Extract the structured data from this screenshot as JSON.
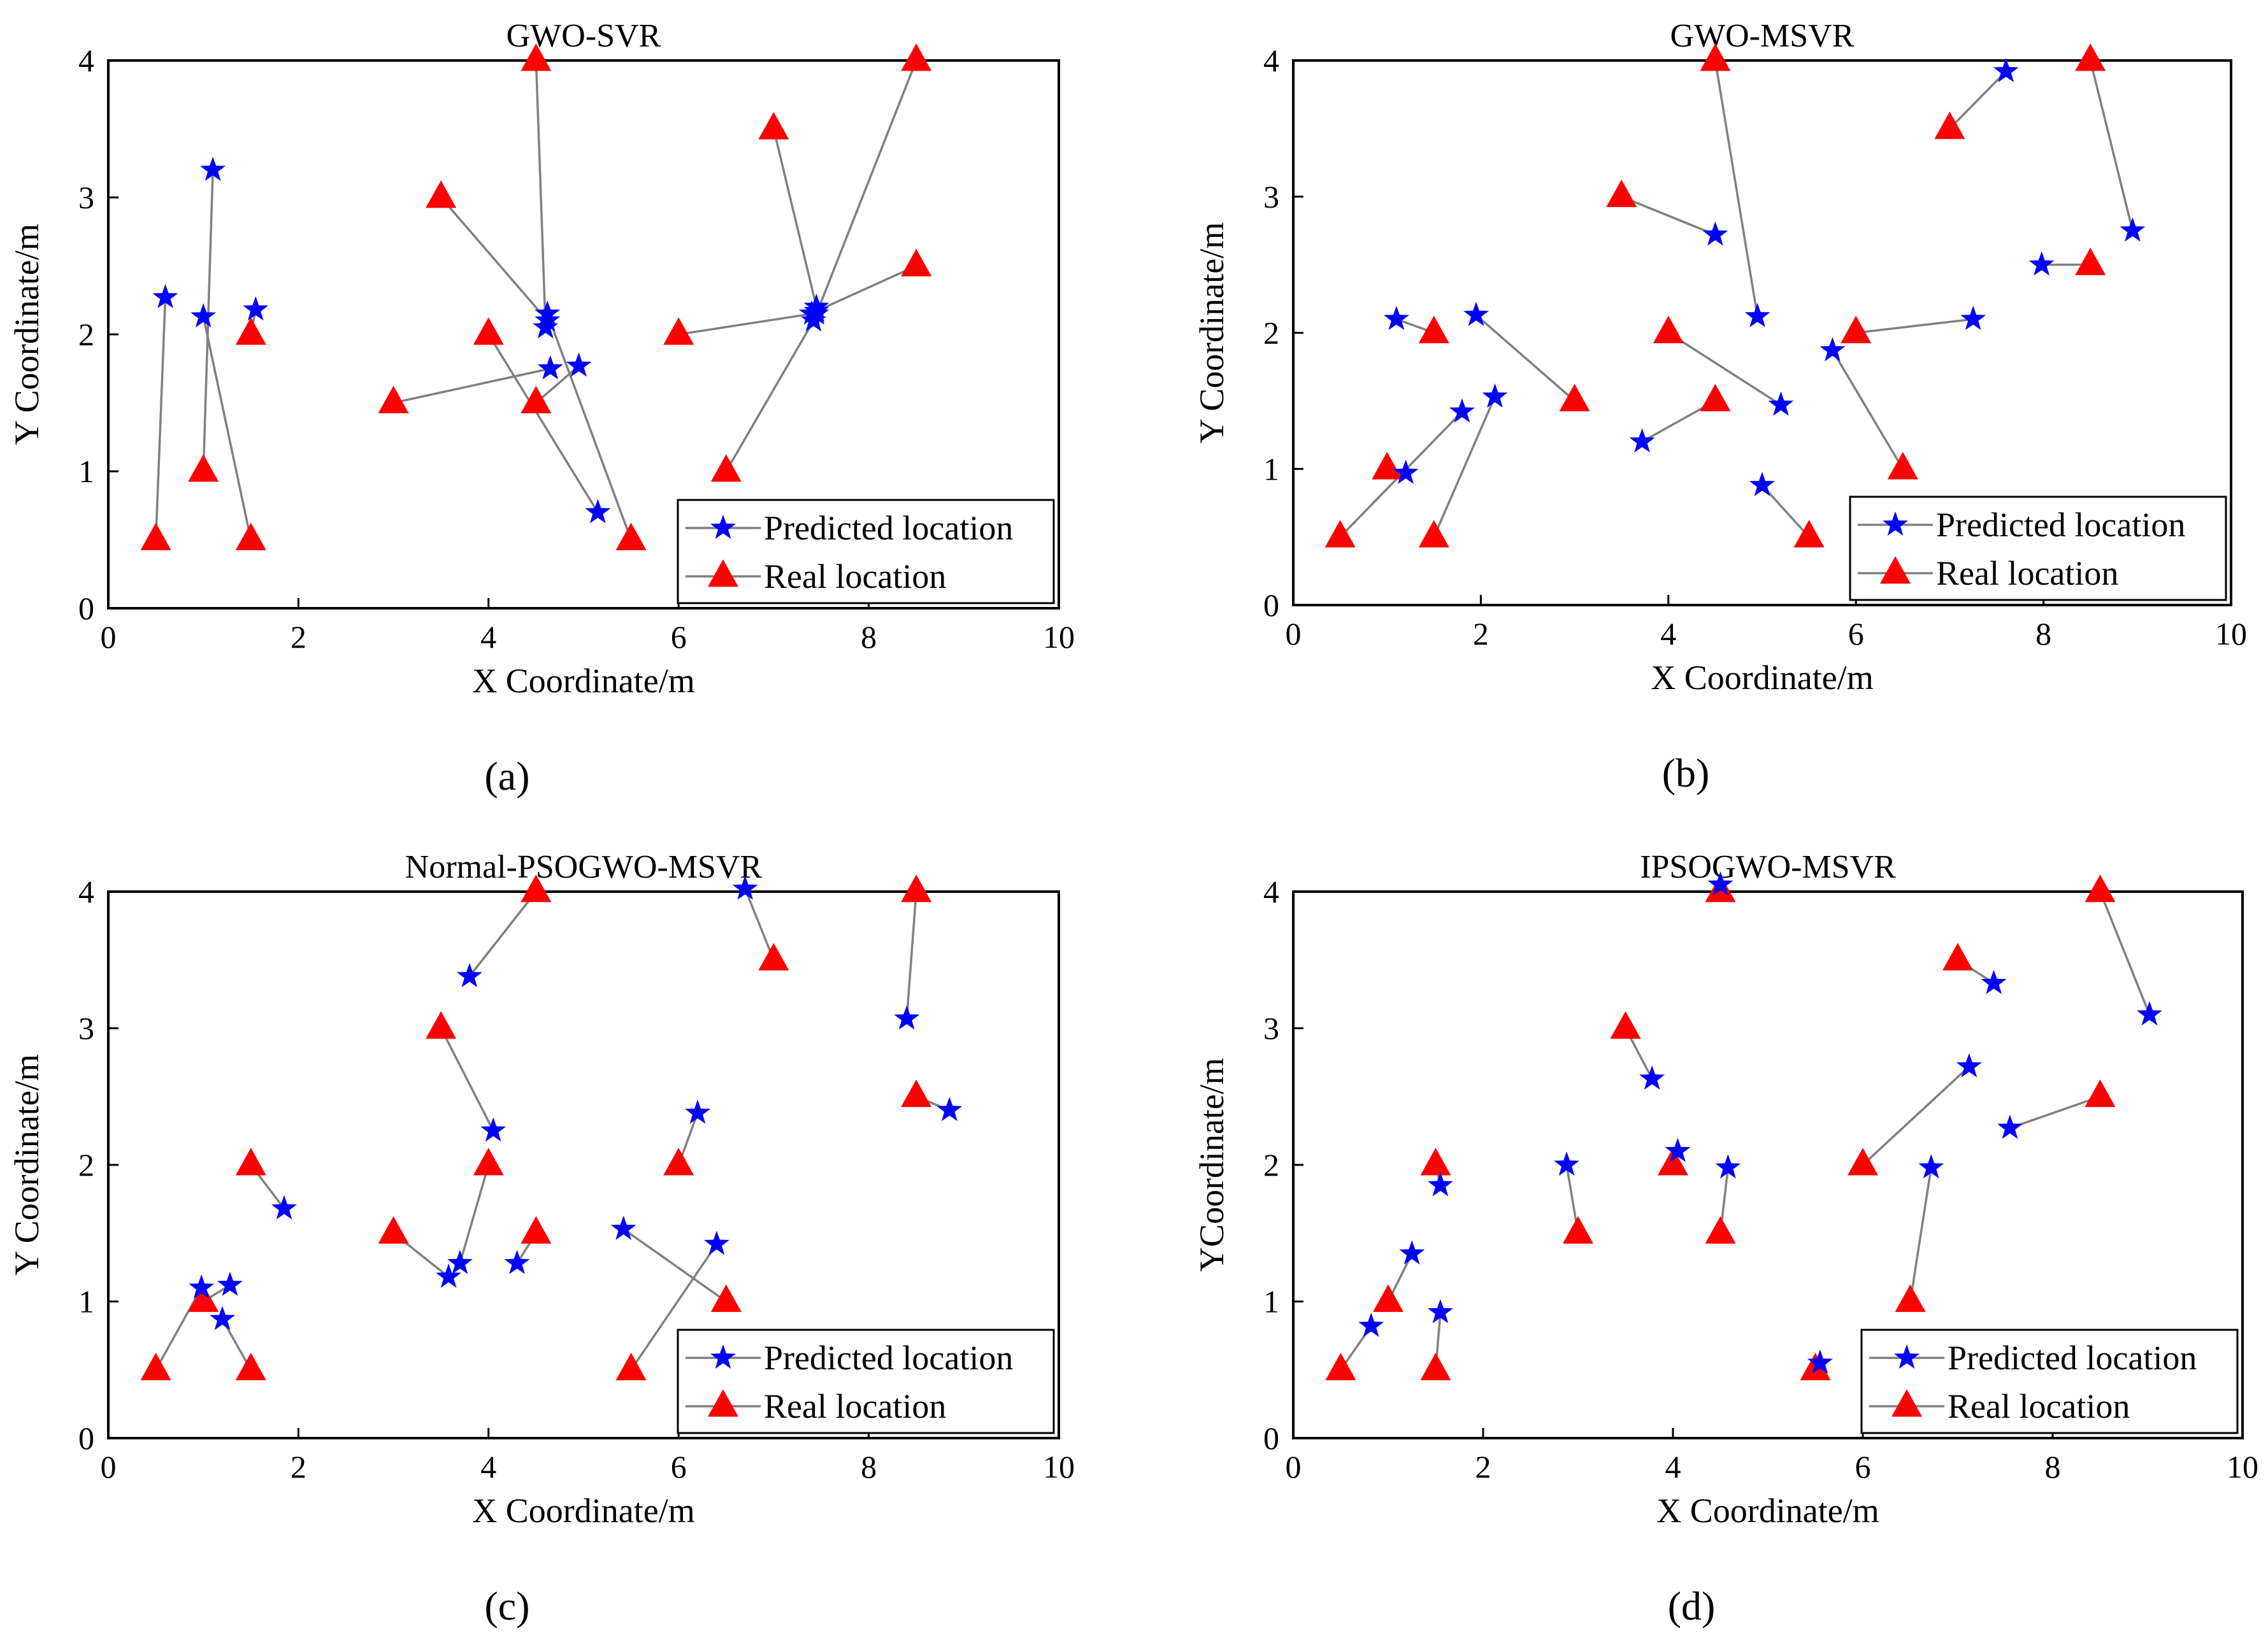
{
  "figure": {
    "series_names": [
      "Predicted location",
      "Real location"
    ],
    "colors": {
      "predicted": "#0000ff",
      "real": "#ff0000",
      "link": "#808080",
      "axis": "#000000"
    },
    "marker_shapes": {
      "predicted": "star",
      "real": "triangle"
    }
  },
  "chart_data": [
    {
      "type": "scatter",
      "panel_label": "(a)",
      "panel_letter": "a",
      "title": "GWO-SVR",
      "xlabel": "X Coordinate/m",
      "ylabel": "Y Coordinate/m",
      "xlim": [
        0,
        10
      ],
      "ylim": [
        0,
        4
      ],
      "xticks": [
        0,
        2,
        4,
        6,
        8,
        10
      ],
      "yticks": [
        0,
        1,
        2,
        3,
        4
      ],
      "legend": {
        "position": "bottom-right",
        "entries": [
          "Predicted location",
          "Real location"
        ]
      },
      "pairs": [
        {
          "real": [
            0.5,
            0.5
          ],
          "pred": [
            0.6,
            2.27
          ]
        },
        {
          "real": [
            1.0,
            1.0
          ],
          "pred": [
            1.1,
            3.2
          ]
        },
        {
          "real": [
            1.5,
            0.5
          ],
          "pred": [
            1.0,
            2.13
          ]
        },
        {
          "real": [
            1.5,
            2.0
          ],
          "pred": [
            1.55,
            2.18
          ]
        },
        {
          "real": [
            3.0,
            1.5
          ],
          "pred": [
            4.65,
            1.75
          ]
        },
        {
          "real": [
            3.5,
            3.0
          ],
          "pred": [
            4.62,
            2.1
          ]
        },
        {
          "real": [
            4.0,
            2.0
          ],
          "pred": [
            5.15,
            0.7
          ]
        },
        {
          "real": [
            4.5,
            1.5
          ],
          "pred": [
            4.95,
            1.77
          ]
        },
        {
          "real": [
            4.5,
            4.0
          ],
          "pred": [
            4.6,
            2.05
          ]
        },
        {
          "real": [
            5.5,
            0.5
          ],
          "pred": [
            4.62,
            2.15
          ]
        },
        {
          "real": [
            6.0,
            2.0
          ],
          "pred": [
            7.4,
            2.15
          ]
        },
        {
          "real": [
            6.5,
            1.0
          ],
          "pred": [
            7.42,
            2.1
          ]
        },
        {
          "real": [
            7.0,
            3.5
          ],
          "pred": [
            7.45,
            2.2
          ]
        },
        {
          "real": [
            8.5,
            2.5
          ],
          "pred": [
            7.45,
            2.17
          ]
        },
        {
          "real": [
            8.5,
            4.0
          ],
          "pred": [
            7.45,
            2.15
          ]
        }
      ]
    },
    {
      "type": "scatter",
      "panel_label": "(b)",
      "panel_letter": "b",
      "title": "GWO-MSVR",
      "xlabel": "X Coordinate/m",
      "ylabel": "Y Coordinate/m",
      "xlim": [
        0,
        10
      ],
      "ylim": [
        0,
        4
      ],
      "xticks": [
        0,
        2,
        4,
        6,
        8,
        10
      ],
      "yticks": [
        0,
        1,
        2,
        3,
        4
      ],
      "legend": {
        "position": "bottom-right",
        "entries": [
          "Predicted location",
          "Real location"
        ]
      },
      "pairs": [
        {
          "real": [
            0.5,
            0.5
          ],
          "pred": [
            1.8,
            1.42
          ]
        },
        {
          "real": [
            1.0,
            1.0
          ],
          "pred": [
            1.2,
            0.97
          ]
        },
        {
          "real": [
            1.5,
            0.5
          ],
          "pred": [
            2.15,
            1.53
          ]
        },
        {
          "real": [
            1.5,
            2.0
          ],
          "pred": [
            1.1,
            2.1
          ]
        },
        {
          "real": [
            3.0,
            1.5
          ],
          "pred": [
            1.95,
            2.13
          ]
        },
        {
          "real": [
            3.5,
            3.0
          ],
          "pred": [
            4.5,
            2.72
          ]
        },
        {
          "real": [
            4.0,
            2.0
          ],
          "pred": [
            5.2,
            1.47
          ]
        },
        {
          "real": [
            4.5,
            1.5
          ],
          "pred": [
            3.72,
            1.2
          ]
        },
        {
          "real": [
            4.5,
            4.0
          ],
          "pred": [
            4.95,
            2.12
          ]
        },
        {
          "real": [
            5.5,
            0.5
          ],
          "pred": [
            5.0,
            0.88
          ]
        },
        {
          "real": [
            6.0,
            2.0
          ],
          "pred": [
            7.25,
            2.1
          ]
        },
        {
          "real": [
            6.5,
            1.0
          ],
          "pred": [
            5.75,
            1.87
          ]
        },
        {
          "real": [
            7.0,
            3.5
          ],
          "pred": [
            7.6,
            3.92
          ]
        },
        {
          "real": [
            8.5,
            2.5
          ],
          "pred": [
            7.98,
            2.5
          ]
        },
        {
          "real": [
            8.5,
            4.0
          ],
          "pred": [
            8.95,
            2.75
          ]
        }
      ]
    },
    {
      "type": "scatter",
      "panel_label": "(c)",
      "panel_letter": "c",
      "title": "Normal-PSOGWO-MSVR",
      "xlabel": "X Coordinate/m",
      "ylabel": "Y Coordinate/m",
      "xlim": [
        0,
        10
      ],
      "ylim": [
        0,
        4
      ],
      "xticks": [
        0,
        2,
        4,
        6,
        8,
        10
      ],
      "yticks": [
        0,
        1,
        2,
        3,
        4
      ],
      "legend": {
        "position": "bottom-right",
        "entries": [
          "Predicted location",
          "Real location"
        ]
      },
      "pairs": [
        {
          "real": [
            0.5,
            0.5
          ],
          "pred": [
            0.98,
            1.1
          ]
        },
        {
          "real": [
            1.0,
            1.0
          ],
          "pred": [
            1.28,
            1.12
          ]
        },
        {
          "real": [
            1.5,
            0.5
          ],
          "pred": [
            1.2,
            0.87
          ]
        },
        {
          "real": [
            1.5,
            2.0
          ],
          "pred": [
            1.85,
            1.68
          ]
        },
        {
          "real": [
            3.0,
            1.5
          ],
          "pred": [
            3.58,
            1.18
          ]
        },
        {
          "real": [
            3.5,
            3.0
          ],
          "pred": [
            4.05,
            2.25
          ]
        },
        {
          "real": [
            4.0,
            2.0
          ],
          "pred": [
            3.7,
            1.28
          ]
        },
        {
          "real": [
            4.5,
            1.5
          ],
          "pred": [
            4.3,
            1.28
          ]
        },
        {
          "real": [
            4.5,
            4.0
          ],
          "pred": [
            3.8,
            3.38
          ]
        },
        {
          "real": [
            5.5,
            0.5
          ],
          "pred": [
            6.4,
            1.42
          ]
        },
        {
          "real": [
            6.0,
            2.0
          ],
          "pred": [
            6.2,
            2.38
          ]
        },
        {
          "real": [
            6.5,
            1.0
          ],
          "pred": [
            5.42,
            1.53
          ]
        },
        {
          "real": [
            7.0,
            3.5
          ],
          "pred": [
            6.7,
            4.02
          ]
        },
        {
          "real": [
            8.5,
            2.5
          ],
          "pred": [
            8.85,
            2.4
          ]
        },
        {
          "real": [
            8.5,
            4.0
          ],
          "pred": [
            8.4,
            3.07
          ]
        }
      ]
    },
    {
      "type": "scatter",
      "panel_label": "(d)",
      "panel_letter": "d",
      "title": "IPSOGWO-MSVR",
      "xlabel": "X Coordinate/m",
      "ylabel": "YCoordinate/m",
      "xlim": [
        0,
        10
      ],
      "ylim": [
        0,
        4
      ],
      "xticks": [
        0,
        2,
        4,
        6,
        8,
        10
      ],
      "yticks": [
        0,
        1,
        2,
        3,
        4
      ],
      "legend": {
        "position": "bottom-right",
        "entries": [
          "Predicted location",
          "Real location"
        ]
      },
      "pairs": [
        {
          "real": [
            0.5,
            0.5
          ],
          "pred": [
            0.82,
            0.82
          ]
        },
        {
          "real": [
            1.0,
            1.0
          ],
          "pred": [
            1.25,
            1.35
          ]
        },
        {
          "real": [
            1.5,
            0.5
          ],
          "pred": [
            1.55,
            0.92
          ]
        },
        {
          "real": [
            1.5,
            2.0
          ],
          "pred": [
            1.55,
            1.85
          ]
        },
        {
          "real": [
            3.0,
            1.5
          ],
          "pred": [
            2.88,
            2.0
          ]
        },
        {
          "real": [
            3.5,
            3.0
          ],
          "pred": [
            3.78,
            2.63
          ]
        },
        {
          "real": [
            4.0,
            2.0
          ],
          "pred": [
            4.05,
            2.1
          ]
        },
        {
          "real": [
            4.5,
            1.5
          ],
          "pred": [
            4.58,
            1.98
          ]
        },
        {
          "real": [
            4.5,
            4.0
          ],
          "pred": [
            4.5,
            4.05
          ]
        },
        {
          "real": [
            5.5,
            0.5
          ],
          "pred": [
            5.55,
            0.55
          ]
        },
        {
          "real": [
            6.0,
            2.0
          ],
          "pred": [
            7.12,
            2.72
          ]
        },
        {
          "real": [
            6.5,
            1.0
          ],
          "pred": [
            6.72,
            1.98
          ]
        },
        {
          "real": [
            7.0,
            3.5
          ],
          "pred": [
            7.38,
            3.33
          ]
        },
        {
          "real": [
            8.5,
            2.5
          ],
          "pred": [
            7.55,
            2.27
          ]
        },
        {
          "real": [
            8.5,
            4.0
          ],
          "pred": [
            9.02,
            3.1
          ]
        }
      ]
    }
  ]
}
